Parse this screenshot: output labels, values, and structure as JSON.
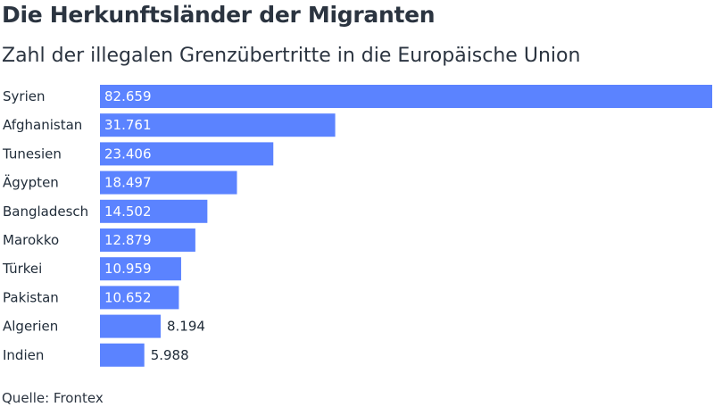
{
  "header": {
    "title": "Die Herkunftsländer der Migranten",
    "subtitle": "Zahl der illegalen Grenzübertritte in die Europäische Union"
  },
  "footer": {
    "source": "Quelle: Frontex"
  },
  "colors": {
    "bar": "#5b83ff",
    "label_inside": "#ffffff",
    "label_outside": "#1f2b38",
    "category": "#1f2b38"
  },
  "chart_data": {
    "type": "bar",
    "orientation": "horizontal",
    "title": "Die Herkunftsländer der Migranten",
    "subtitle": "Zahl der illegalen Grenzübertritte in die Europäische Union",
    "categories": [
      "Syrien",
      "Afghanistan",
      "Tunesien",
      "Ägypten",
      "Bangladesch",
      "Marokko",
      "Türkei",
      "Pakistan",
      "Algerien",
      "Indien"
    ],
    "values": [
      82659,
      31761,
      23406,
      18497,
      14502,
      12879,
      10959,
      10652,
      8194,
      5988
    ],
    "value_labels": [
      "82.659",
      "31.761",
      "23.406",
      "18.497",
      "14.502",
      "12.879",
      "10.959",
      "10.652",
      "8.194",
      "5.988"
    ],
    "xlim": [
      0,
      82659
    ],
    "grid": false,
    "legend": "none"
  }
}
